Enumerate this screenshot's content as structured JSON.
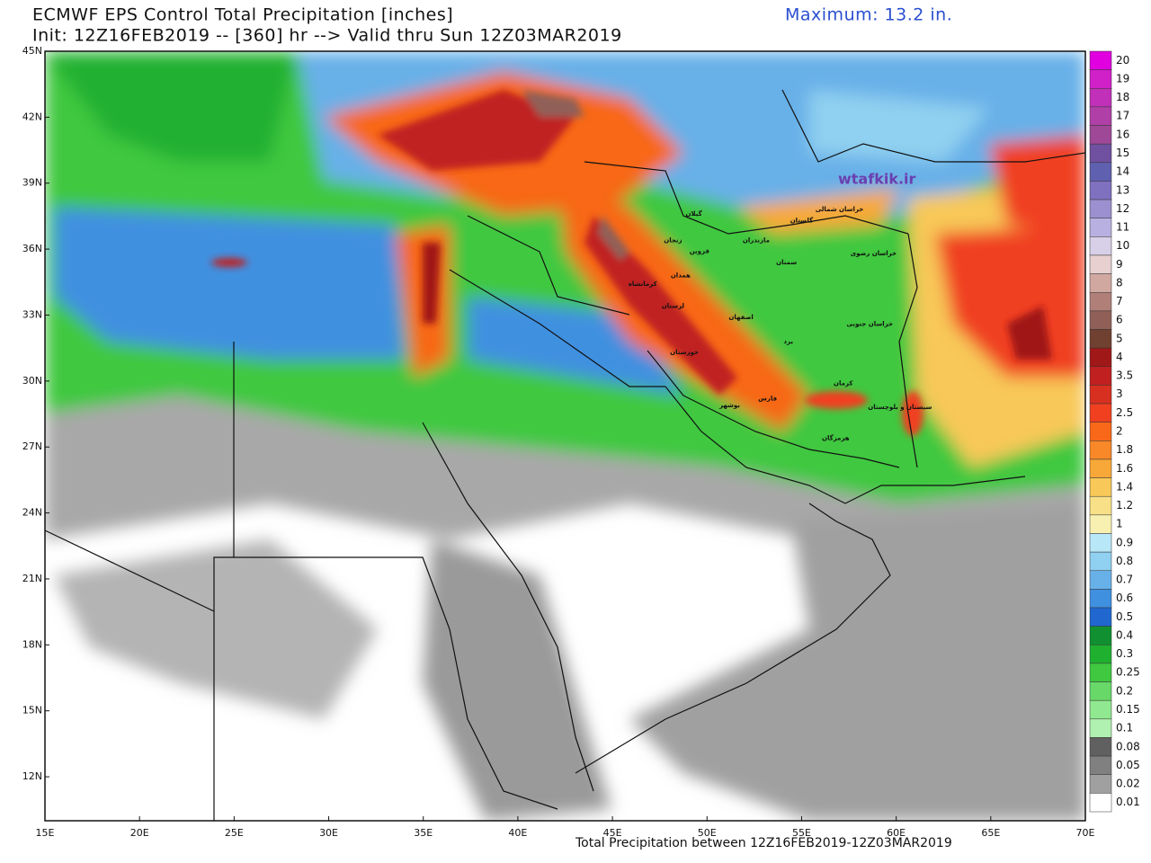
{
  "header": {
    "title": "ECMWF EPS Control Total Precipitation [inches]",
    "subtitle": "Init: 12Z16FEB2019 -- [360] hr --> Valid thru Sun 12Z03MAR2019",
    "maximum": "Maximum: 13.2 in."
  },
  "map": {
    "lon_range": [
      15,
      70
    ],
    "lat_range": [
      10,
      45
    ],
    "lon_ticks": [
      {
        "value": 15,
        "label": "15E"
      },
      {
        "value": 20,
        "label": "20E"
      },
      {
        "value": 25,
        "label": "25E"
      },
      {
        "value": 30,
        "label": "30E"
      },
      {
        "value": 35,
        "label": "35E"
      },
      {
        "value": 40,
        "label": "40E"
      },
      {
        "value": 45,
        "label": "45E"
      },
      {
        "value": 50,
        "label": "50E"
      },
      {
        "value": 55,
        "label": "55E"
      },
      {
        "value": 60,
        "label": "60E"
      },
      {
        "value": 65,
        "label": "65E"
      },
      {
        "value": 70,
        "label": "70E"
      }
    ],
    "lat_ticks": [
      {
        "value": 45,
        "label": "45N"
      },
      {
        "value": 42,
        "label": "42N"
      },
      {
        "value": 39,
        "label": "39N"
      },
      {
        "value": 36,
        "label": "36N"
      },
      {
        "value": 33,
        "label": "33N"
      },
      {
        "value": 30,
        "label": "30N"
      },
      {
        "value": 27,
        "label": "27N"
      },
      {
        "value": 24,
        "label": "24N"
      },
      {
        "value": 21,
        "label": "21N"
      },
      {
        "value": 18,
        "label": "18N"
      },
      {
        "value": 15,
        "label": "15N"
      },
      {
        "value": 12,
        "label": "12N"
      }
    ],
    "watermark": "wtafkik.ir",
    "caption": "Total Precipitation between 12Z16FEB2019-12Z03MAR2019",
    "province_labels": [
      "گیلان",
      "مازندران",
      "گلستان",
      "خراسان شمالی",
      "خراسان رضوی",
      "سمنان",
      "زنجان",
      "قزوین",
      "همدان",
      "کرمانشاه",
      "لرستان",
      "اصفهان",
      "یزد",
      "خراسان جنوبی",
      "خوزستان",
      "کرمان",
      "فارس",
      "بوشهر",
      "هرمزگان",
      "سیستان و بلوچستان"
    ]
  },
  "colorbar": {
    "levels": [
      20,
      19,
      18,
      17,
      16,
      15,
      14,
      13,
      12,
      11,
      10,
      9,
      8,
      7,
      6,
      5,
      4,
      3.5,
      3,
      2.5,
      2,
      1.8,
      1.6,
      1.4,
      1.2,
      1,
      0.9,
      0.8,
      0.7,
      0.6,
      0.5,
      0.4,
      0.3,
      0.25,
      0.2,
      0.15,
      0.1,
      0.08,
      0.05,
      0.02,
      0.01
    ],
    "colors": [
      "#e000e0",
      "#d020c8",
      "#c030b8",
      "#b040a8",
      "#a04898",
      "#7050a0",
      "#6060b0",
      "#8070c0",
      "#9c90d0",
      "#b8b0e0",
      "#d8d0e8",
      "#e8d0d0",
      "#d0a8a0",
      "#b08078",
      "#906058",
      "#704030",
      "#a01818",
      "#c02020",
      "#d83020",
      "#f04020",
      "#f86818",
      "#f88828",
      "#f8a838",
      "#f8c858",
      "#f8e088",
      "#f8f0b0",
      "#b8e8f8",
      "#90d0f0",
      "#68b0e8",
      "#4090e0",
      "#2068d0",
      "#109030",
      "#20b030",
      "#40c840",
      "#68d868",
      "#90e890",
      "#b0f0b0",
      "#606060",
      "#808080",
      "#a0a0a0",
      "#ffffff"
    ]
  }
}
